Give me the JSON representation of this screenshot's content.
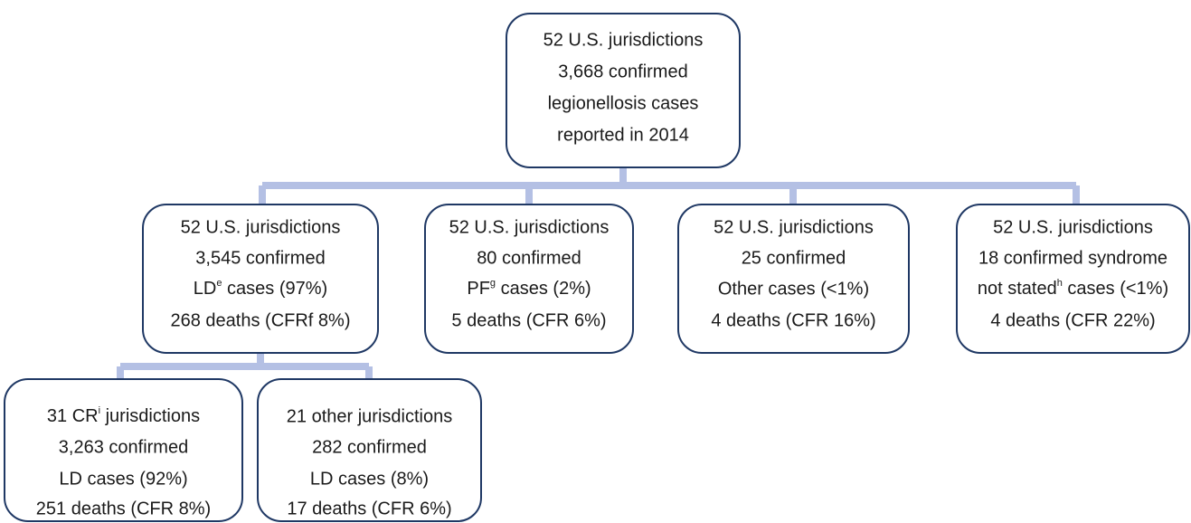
{
  "nodes": [
    {
      "lines": [
        "52 U.S. jurisdictions",
        "3,668  confirmed",
        "legionellosis cases",
        "reported in 2014"
      ]
    },
    {
      "lines": [
        "52 U.S. jurisdictions",
        "3,545 confirmed",
        {
          "before": "LD",
          "sup": "e",
          "after": " cases (97%)"
        },
        "268 deaths (CFRf 8%)"
      ]
    },
    {
      "lines": [
        "52 U.S. jurisdictions",
        "80 confirmed",
        {
          "before": "PF",
          "sup": "g",
          "after": " cases (2%)"
        },
        "5 deaths (CFR 6%)"
      ]
    },
    {
      "lines": [
        "52 U.S. jurisdictions",
        "25 confirmed",
        "Other cases (<1%)",
        "4 deaths (CFR 16%)"
      ]
    },
    {
      "lines": [
        "52 U.S. jurisdictions",
        "18 confirmed syndrome",
        {
          "before": "not stated",
          "sup": "h",
          "after": " cases (<1%)"
        },
        "4 deaths (CFR 22%)"
      ]
    },
    {
      "lines": [
        {
          "before": "31 CR",
          "sup": "i",
          "after": " jurisdictions"
        },
        "3,263 confirmed",
        "LD cases (92%)",
        "251 deaths (CFR 8%)"
      ]
    },
    {
      "lines": [
        "21 other jurisdictions",
        "282 confirmed",
        "LD cases (8%)",
        "17 deaths (CFR 6%)"
      ]
    }
  ]
}
